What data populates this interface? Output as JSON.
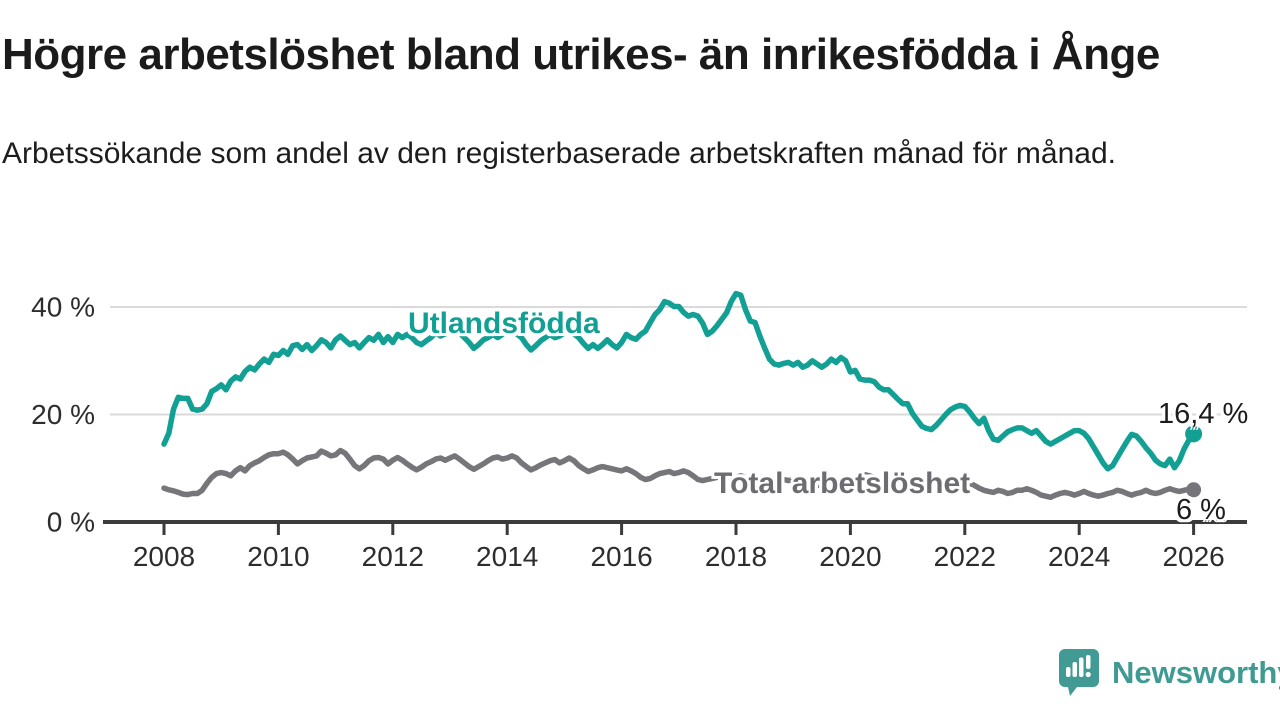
{
  "header": {
    "title": "Högre arbetslöshet bland utrikes- än inrikesfödda i Ånge",
    "subtitle": "Arbetssökande som andel av den registerbaserade arbetskraften månad för månad."
  },
  "branding": {
    "name": "Newsworthy",
    "color": "#3f9a93"
  },
  "chart_data": {
    "type": "line",
    "title": "Högre arbetslöshet bland utrikes- än inrikesfödda i Ånge",
    "xlabel": "",
    "ylabel": "Arbetssökande som andel av den registerbaserade arbetskraften",
    "x_unit": "months since 2008-01",
    "x_tick_years": [
      2008,
      2010,
      2012,
      2014,
      2016,
      2018,
      2020,
      2022,
      2024,
      2026
    ],
    "y_ticks": [
      {
        "value": 0,
        "label": "0 %"
      },
      {
        "value": 20,
        "label": "20 %"
      },
      {
        "value": 40,
        "label": "40 %"
      }
    ],
    "ylim": [
      0,
      44
    ],
    "xlim_years": [
      2007.8,
      2026.9
    ],
    "grid": "horizontal-only",
    "legend_position": "inline-labels",
    "colors": {
      "grid": "#dadada",
      "axis": "#3b3b3b",
      "tick_text": "#2d2d2d"
    },
    "series": [
      {
        "name": "Utlandsfödda",
        "color": "#13a094",
        "end_label": "16,4 %",
        "end_value": 16.4,
        "values": [
          14.5,
          16.5,
          21.0,
          23.2,
          23.0,
          23.0,
          21.0,
          20.8,
          21.0,
          22.0,
          24.3,
          24.8,
          25.5,
          24.6,
          26.2,
          27.0,
          26.6,
          28.0,
          28.8,
          28.3,
          29.4,
          30.3,
          29.7,
          31.2,
          31.0,
          31.9,
          31.2,
          32.8,
          33.0,
          32.1,
          33.0,
          31.9,
          32.8,
          33.9,
          33.4,
          32.4,
          33.9,
          34.6,
          33.8,
          33.0,
          33.4,
          32.4,
          33.4,
          34.3,
          33.8,
          34.9,
          33.4,
          34.5,
          33.4,
          34.9,
          34.3,
          34.9,
          34.3,
          33.4,
          33.0,
          33.7,
          34.3,
          35.2,
          34.6,
          35.0,
          35.5,
          36.0,
          35.2,
          34.3,
          33.4,
          32.3,
          33.0,
          33.9,
          34.3,
          34.9,
          34.3,
          34.9,
          35.5,
          35.9,
          35.0,
          34.3,
          33.0,
          32.0,
          32.8,
          33.7,
          34.3,
          34.9,
          34.3,
          34.6,
          35.2,
          35.9,
          35.0,
          34.3,
          33.2,
          32.3,
          33.0,
          32.3,
          33.0,
          33.9,
          33.0,
          32.4,
          33.4,
          34.9,
          34.3,
          34.0,
          34.9,
          35.5,
          37.1,
          38.6,
          39.5,
          41.0,
          40.7,
          40.1,
          40.1,
          39.0,
          38.3,
          38.6,
          38.3,
          37.0,
          34.9,
          35.5,
          36.5,
          37.7,
          38.9,
          41.0,
          42.5,
          42.2,
          39.5,
          37.4,
          37.1,
          34.6,
          32.4,
          30.3,
          29.4,
          29.2,
          29.5,
          29.7,
          29.2,
          29.7,
          28.8,
          29.2,
          30.0,
          29.4,
          28.8,
          29.4,
          30.3,
          29.7,
          30.6,
          30.0,
          27.9,
          28.2,
          26.6,
          26.4,
          26.4,
          26.1,
          25.1,
          24.6,
          24.6,
          23.7,
          22.8,
          22.0,
          22.0,
          20.2,
          19.0,
          17.8,
          17.4,
          17.2,
          18.0,
          19.0,
          20.0,
          20.9,
          21.4,
          21.7,
          21.5,
          20.5,
          19.3,
          18.3,
          19.3,
          17.0,
          15.4,
          15.2,
          16.0,
          16.8,
          17.2,
          17.5,
          17.5,
          17.0,
          16.5,
          17.0,
          16.0,
          15.0,
          14.5,
          15.0,
          15.5,
          16.0,
          16.5,
          17.0,
          17.0,
          16.5,
          15.5,
          14.0,
          12.5,
          11.0,
          9.9,
          10.5,
          12.0,
          13.5,
          15.0,
          16.3,
          16.0,
          15.0,
          13.8,
          12.8,
          11.5,
          10.8,
          10.5,
          11.7,
          10.1,
          11.4,
          13.6,
          15.2,
          16.4
        ]
      },
      {
        "name": "Total arbetslöshet",
        "color": "#76767a",
        "end_label": "6 %",
        "end_value": 6.0,
        "values": [
          6.3,
          6.0,
          5.8,
          5.5,
          5.2,
          5.1,
          5.3,
          5.3,
          5.9,
          7.2,
          8.3,
          9.0,
          9.2,
          9.0,
          8.6,
          9.5,
          10.1,
          9.5,
          10.5,
          11.0,
          11.4,
          12.0,
          12.5,
          12.7,
          12.7,
          13.0,
          12.5,
          11.7,
          10.8,
          11.4,
          11.9,
          12.1,
          12.3,
          13.2,
          12.8,
          12.3,
          12.5,
          13.3,
          12.8,
          11.7,
          10.5,
          9.9,
          10.5,
          11.4,
          11.9,
          12.0,
          11.7,
          10.8,
          11.5,
          12.0,
          11.5,
          10.8,
          10.2,
          9.7,
          10.2,
          10.8,
          11.2,
          11.7,
          11.9,
          11.5,
          11.9,
          12.3,
          11.7,
          11.0,
          10.3,
          9.8,
          10.3,
          10.8,
          11.4,
          11.9,
          12.1,
          11.7,
          11.9,
          12.3,
          11.9,
          11.0,
          10.3,
          9.7,
          10.1,
          10.6,
          11.0,
          11.4,
          11.6,
          11.0,
          11.4,
          11.9,
          11.4,
          10.5,
          9.9,
          9.4,
          9.7,
          10.1,
          10.3,
          10.1,
          9.9,
          9.7,
          9.5,
          9.9,
          9.5,
          9.0,
          8.3,
          7.9,
          8.1,
          8.6,
          9.0,
          9.2,
          9.4,
          9.0,
          9.2,
          9.5,
          9.2,
          8.6,
          7.9,
          7.7,
          7.9,
          8.1,
          8.3,
          8.5,
          8.3,
          8.1,
          8.3,
          8.6,
          8.3,
          7.7,
          7.2,
          7.0,
          7.2,
          7.4,
          7.6,
          7.8,
          7.9,
          7.7,
          7.9,
          8.1,
          7.9,
          7.4,
          7.0,
          6.8,
          7.0,
          7.2,
          7.4,
          7.6,
          7.7,
          7.6,
          7.9,
          8.1,
          8.6,
          8.8,
          8.6,
          8.3,
          8.1,
          7.9,
          7.7,
          7.6,
          7.4,
          7.2,
          7.4,
          7.6,
          7.4,
          7.0,
          6.8,
          6.6,
          6.8,
          7.0,
          7.0,
          6.8,
          6.8,
          7.0,
          7.0,
          7.2,
          6.8,
          6.3,
          5.9,
          5.7,
          5.5,
          5.9,
          5.7,
          5.3,
          5.5,
          5.9,
          5.9,
          6.2,
          5.9,
          5.5,
          5.0,
          4.8,
          4.6,
          5.0,
          5.3,
          5.5,
          5.3,
          5.0,
          5.3,
          5.7,
          5.3,
          5.0,
          4.8,
          5.0,
          5.3,
          5.5,
          5.9,
          5.7,
          5.3,
          5.0,
          5.3,
          5.5,
          5.9,
          5.5,
          5.3,
          5.5,
          5.9,
          6.2,
          5.9,
          5.7,
          5.9,
          6.1,
          6.0
        ]
      }
    ]
  }
}
